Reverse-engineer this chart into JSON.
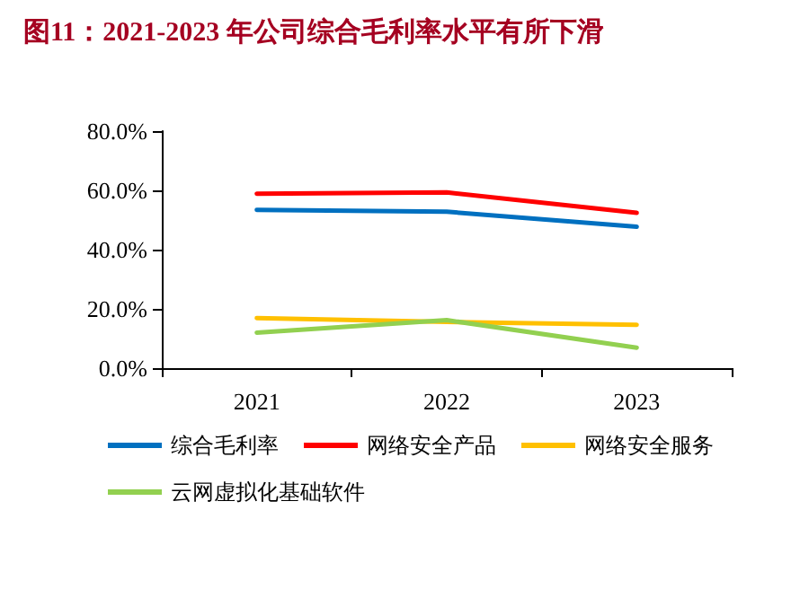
{
  "chart_data": {
    "type": "line",
    "title": "图11：2021-2023 年公司综合毛利率水平有所下滑",
    "categories": [
      "2021",
      "2022",
      "2023"
    ],
    "series": [
      {
        "name": "综合毛利率",
        "color": "#0070c0",
        "values": [
          53.4,
          52.8,
          47.7
        ]
      },
      {
        "name": "网络安全产品",
        "color": "#ff0000",
        "values": [
          58.9,
          59.3,
          52.4
        ]
      },
      {
        "name": "网络安全服务",
        "color": "#ffc000",
        "values": [
          16.9,
          15.6,
          14.6
        ]
      },
      {
        "name": "云网虚拟化基础软件",
        "color": "#92d050",
        "values": [
          12.0,
          16.2,
          6.9
        ]
      }
    ],
    "ylim": [
      0,
      80
    ],
    "yticks": [
      {
        "value": 0,
        "label": "0.0%"
      },
      {
        "value": 20,
        "label": "20.0%"
      },
      {
        "value": 40,
        "label": "40.0%"
      },
      {
        "value": 60,
        "label": "60.0%"
      },
      {
        "value": 80,
        "label": "80.0%"
      }
    ],
    "grid": false,
    "legend": "bottom",
    "marker": "none",
    "line_style": "solid"
  }
}
